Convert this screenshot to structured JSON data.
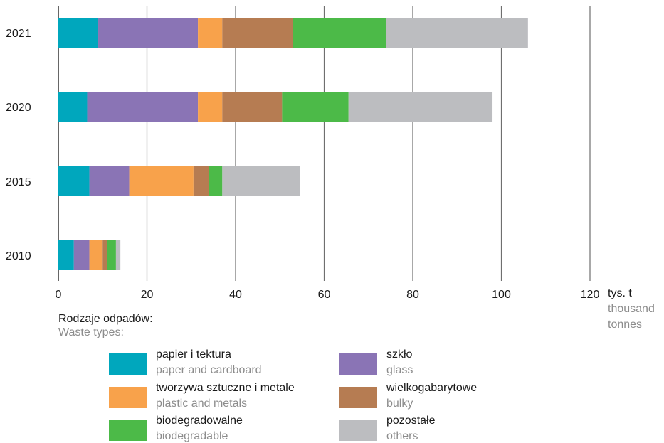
{
  "chart_data": {
    "type": "bar",
    "orientation": "horizontal",
    "stacked": true,
    "categories": [
      "2021",
      "2020",
      "2015",
      "2010"
    ],
    "series": [
      {
        "name": "papier i tektura",
        "name_en": "paper and cardboard",
        "color": "#00a7bd",
        "values": [
          9.0,
          6.5,
          7.0,
          3.5
        ]
      },
      {
        "name": "szkło",
        "name_en": "glass",
        "color": "#8a74b5",
        "values": [
          22.5,
          25.0,
          9.0,
          3.5
        ]
      },
      {
        "name": "tworzywa sztuczne i metale",
        "name_en": "plastic and metals",
        "color": "#f8a24b",
        "values": [
          5.5,
          5.5,
          14.5,
          3.0
        ]
      },
      {
        "name": "wielkogabarytowe",
        "name_en": "bulky",
        "color": "#b67c52",
        "values": [
          16.0,
          13.5,
          3.5,
          1.0
        ]
      },
      {
        "name": "biodegradowalne",
        "name_en": "biodegradable",
        "color": "#4cba48",
        "values": [
          21.0,
          15.0,
          3.0,
          2.0
        ]
      },
      {
        "name": "pozostałe",
        "name_en": "others",
        "color": "#bcbdc0",
        "values": [
          32.0,
          32.5,
          17.5,
          1.0
        ]
      }
    ],
    "xlim": [
      0,
      120
    ],
    "xticks": [
      0,
      20,
      40,
      60,
      80,
      100,
      120
    ],
    "xlabel": "tys. t",
    "xlabel_en_line1": "thousand",
    "xlabel_en_line2": "tonnes",
    "grid": "vertical"
  },
  "legend": {
    "heading": "Rodzaje odpadów:",
    "heading_en": "Waste types:"
  }
}
